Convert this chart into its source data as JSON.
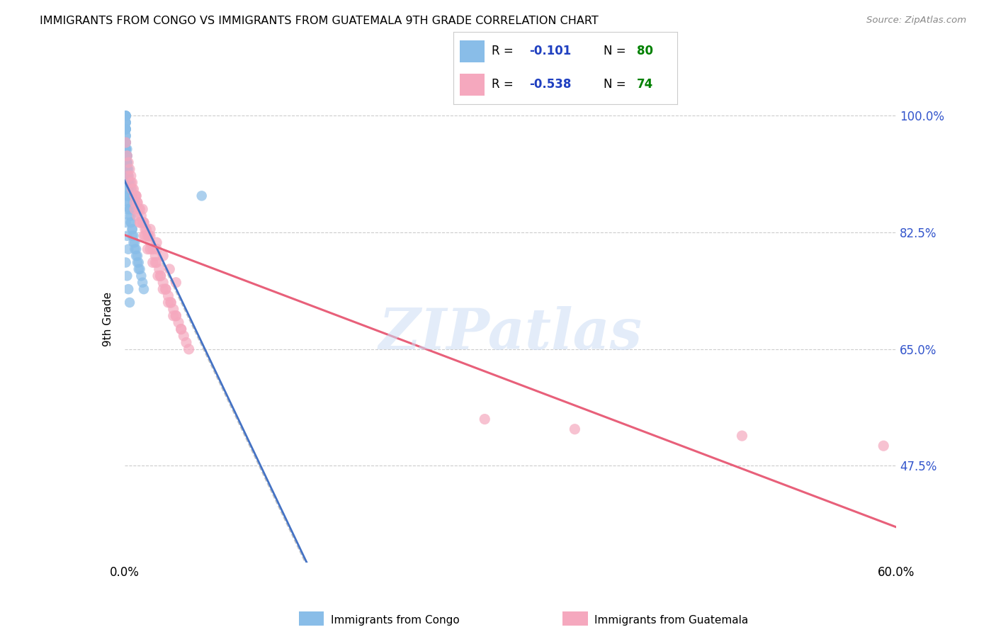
{
  "title": "IMMIGRANTS FROM CONGO VS IMMIGRANTS FROM GUATEMALA 9TH GRADE CORRELATION CHART",
  "source": "Source: ZipAtlas.com",
  "ylabel": "9th Grade",
  "ytick_labels": [
    "100.0%",
    "82.5%",
    "65.0%",
    "47.5%"
  ],
  "ytick_values": [
    1.0,
    0.825,
    0.65,
    0.475
  ],
  "xlim": [
    0.0,
    0.6
  ],
  "ylim": [
    0.33,
    1.06
  ],
  "congo_color": "#89bde8",
  "guatemala_color": "#f5a8be",
  "congo_line_color": "#4472c4",
  "guatemala_line_color": "#e8607a",
  "dashed_line_color": "#aaaaaa",
  "watermark_text": "ZIPatlas",
  "watermark_color": "#ccddf5",
  "background_color": "#ffffff",
  "legend_R_color": "#2040c0",
  "legend_N_color": "#008000",
  "congo_R": -0.101,
  "congo_N": 80,
  "guatemala_R": -0.538,
  "guatemala_N": 74,
  "congo_x": [
    0.0,
    0.001,
    0.001,
    0.001,
    0.001,
    0.001,
    0.001,
    0.001,
    0.001,
    0.001,
    0.001,
    0.001,
    0.001,
    0.001,
    0.001,
    0.001,
    0.001,
    0.001,
    0.001,
    0.002,
    0.002,
    0.002,
    0.002,
    0.002,
    0.002,
    0.002,
    0.002,
    0.002,
    0.002,
    0.003,
    0.003,
    0.003,
    0.003,
    0.003,
    0.003,
    0.003,
    0.004,
    0.004,
    0.004,
    0.004,
    0.005,
    0.005,
    0.005,
    0.006,
    0.006,
    0.006,
    0.007,
    0.007,
    0.008,
    0.008,
    0.009,
    0.009,
    0.01,
    0.01,
    0.011,
    0.011,
    0.012,
    0.013,
    0.014,
    0.015,
    0.001,
    0.001,
    0.002,
    0.002,
    0.003,
    0.003,
    0.004,
    0.005,
    0.006,
    0.007,
    0.001,
    0.002,
    0.001,
    0.002,
    0.003,
    0.001,
    0.002,
    0.003,
    0.004,
    0.06
  ],
  "congo_y": [
    1.0,
    1.0,
    1.0,
    1.0,
    1.0,
    1.0,
    0.99,
    0.99,
    0.99,
    0.98,
    0.98,
    0.98,
    0.98,
    0.97,
    0.97,
    0.96,
    0.96,
    0.95,
    0.95,
    0.95,
    0.94,
    0.94,
    0.93,
    0.93,
    0.92,
    0.92,
    0.91,
    0.91,
    0.9,
    0.9,
    0.9,
    0.89,
    0.89,
    0.88,
    0.88,
    0.87,
    0.87,
    0.86,
    0.86,
    0.85,
    0.85,
    0.84,
    0.84,
    0.83,
    0.83,
    0.82,
    0.82,
    0.81,
    0.81,
    0.8,
    0.8,
    0.79,
    0.79,
    0.78,
    0.78,
    0.77,
    0.77,
    0.76,
    0.75,
    0.74,
    0.96,
    0.95,
    0.94,
    0.93,
    0.92,
    0.91,
    0.9,
    0.89,
    0.88,
    0.87,
    0.88,
    0.86,
    0.84,
    0.82,
    0.8,
    0.78,
    0.76,
    0.74,
    0.72,
    0.88
  ],
  "guatemala_x": [
    0.001,
    0.002,
    0.003,
    0.004,
    0.005,
    0.006,
    0.007,
    0.008,
    0.009,
    0.01,
    0.011,
    0.012,
    0.013,
    0.014,
    0.015,
    0.016,
    0.017,
    0.018,
    0.019,
    0.02,
    0.022,
    0.024,
    0.025,
    0.027,
    0.028,
    0.03,
    0.032,
    0.034,
    0.036,
    0.038,
    0.04,
    0.042,
    0.044,
    0.046,
    0.048,
    0.05,
    0.008,
    0.01,
    0.012,
    0.015,
    0.018,
    0.022,
    0.026,
    0.03,
    0.034,
    0.038,
    0.005,
    0.009,
    0.014,
    0.02,
    0.025,
    0.03,
    0.035,
    0.04,
    0.003,
    0.006,
    0.01,
    0.015,
    0.02,
    0.025,
    0.008,
    0.012,
    0.016,
    0.02,
    0.024,
    0.028,
    0.032,
    0.036,
    0.04,
    0.044,
    0.59,
    0.35,
    0.48,
    0.28
  ],
  "guatemala_y": [
    0.96,
    0.94,
    0.93,
    0.92,
    0.91,
    0.9,
    0.89,
    0.88,
    0.88,
    0.87,
    0.86,
    0.86,
    0.85,
    0.84,
    0.84,
    0.83,
    0.83,
    0.82,
    0.82,
    0.81,
    0.8,
    0.79,
    0.78,
    0.77,
    0.76,
    0.75,
    0.74,
    0.73,
    0.72,
    0.71,
    0.7,
    0.69,
    0.68,
    0.67,
    0.66,
    0.65,
    0.87,
    0.85,
    0.84,
    0.82,
    0.8,
    0.78,
    0.76,
    0.74,
    0.72,
    0.7,
    0.9,
    0.88,
    0.86,
    0.83,
    0.81,
    0.79,
    0.77,
    0.75,
    0.91,
    0.89,
    0.87,
    0.84,
    0.82,
    0.8,
    0.86,
    0.84,
    0.82,
    0.8,
    0.78,
    0.76,
    0.74,
    0.72,
    0.7,
    0.68,
    0.505,
    0.53,
    0.52,
    0.545
  ]
}
